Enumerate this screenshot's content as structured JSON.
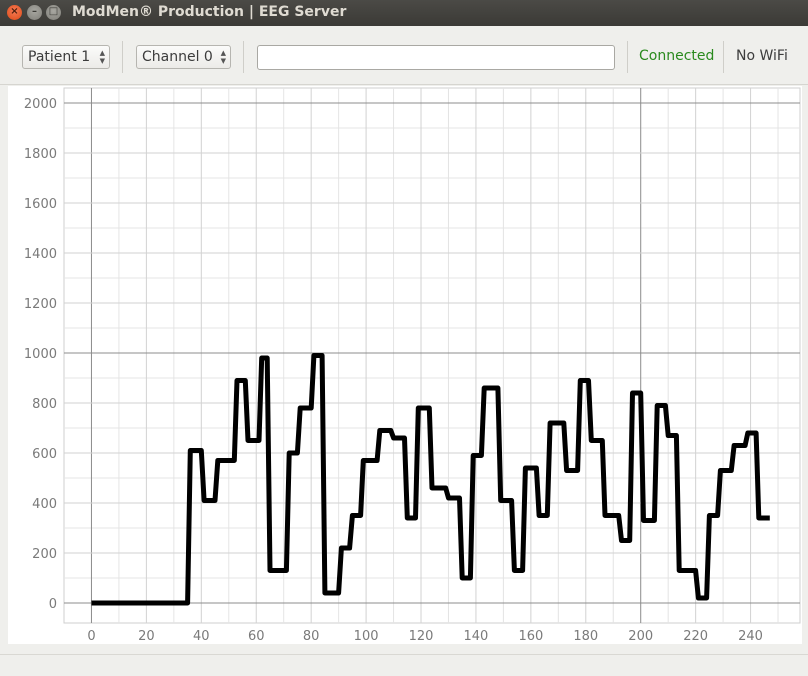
{
  "window": {
    "title": "ModMen® Production | EEG Server"
  },
  "toolbar": {
    "patient_select": {
      "value": "Patient 1"
    },
    "channel_select": {
      "value": "Channel 0"
    },
    "input": {
      "value": ""
    },
    "connection_status": "Connected",
    "connection_color": "#2a8a1e",
    "wifi_status": "No WiFi"
  },
  "chart_data": {
    "type": "line",
    "title": "",
    "xlabel": "",
    "ylabel": "",
    "xlim": [
      -10,
      258
    ],
    "ylim": [
      -80,
      2060
    ],
    "x_ticks": [
      0,
      20,
      40,
      60,
      80,
      100,
      120,
      140,
      160,
      180,
      200,
      220,
      240
    ],
    "y_ticks": [
      0,
      200,
      400,
      600,
      800,
      1000,
      1200,
      1400,
      1600,
      1800,
      2000
    ],
    "grid": true,
    "legend": "none",
    "line_color": "#000000",
    "series": [
      {
        "points": [
          [
            0,
            0
          ],
          [
            35,
            0
          ],
          [
            36,
            610
          ],
          [
            40,
            610
          ],
          [
            41,
            410
          ],
          [
            45,
            410
          ],
          [
            46,
            570
          ],
          [
            52,
            570
          ],
          [
            53,
            890
          ],
          [
            56,
            890
          ],
          [
            57,
            650
          ],
          [
            61,
            650
          ],
          [
            62,
            980
          ],
          [
            64,
            980
          ],
          [
            65,
            130
          ],
          [
            71,
            130
          ],
          [
            72,
            600
          ],
          [
            75,
            600
          ],
          [
            76,
            780
          ],
          [
            80,
            780
          ],
          [
            81,
            990
          ],
          [
            84,
            990
          ],
          [
            85,
            40
          ],
          [
            90,
            40
          ],
          [
            91,
            220
          ],
          [
            94,
            220
          ],
          [
            95,
            350
          ],
          [
            98,
            350
          ],
          [
            99,
            570
          ],
          [
            104,
            570
          ],
          [
            105,
            690
          ],
          [
            109,
            690
          ],
          [
            110,
            660
          ],
          [
            114,
            660
          ],
          [
            115,
            340
          ],
          [
            118,
            340
          ],
          [
            119,
            780
          ],
          [
            123,
            780
          ],
          [
            124,
            460
          ],
          [
            129,
            460
          ],
          [
            130,
            420
          ],
          [
            134,
            420
          ],
          [
            135,
            100
          ],
          [
            138,
            100
          ],
          [
            139,
            590
          ],
          [
            142,
            590
          ],
          [
            143,
            860
          ],
          [
            148,
            860
          ],
          [
            149,
            410
          ],
          [
            153,
            410
          ],
          [
            154,
            130
          ],
          [
            157,
            130
          ],
          [
            158,
            540
          ],
          [
            162,
            540
          ],
          [
            163,
            350
          ],
          [
            166,
            350
          ],
          [
            167,
            720
          ],
          [
            172,
            720
          ],
          [
            173,
            530
          ],
          [
            177,
            530
          ],
          [
            178,
            890
          ],
          [
            181,
            890
          ],
          [
            182,
            650
          ],
          [
            186,
            650
          ],
          [
            187,
            350
          ],
          [
            192,
            350
          ],
          [
            193,
            250
          ],
          [
            196,
            250
          ],
          [
            197,
            840
          ],
          [
            200,
            840
          ],
          [
            201,
            330
          ],
          [
            205,
            330
          ],
          [
            206,
            790
          ],
          [
            209,
            790
          ],
          [
            210,
            670
          ],
          [
            213,
            670
          ],
          [
            214,
            130
          ],
          [
            220,
            130
          ],
          [
            221,
            20
          ],
          [
            224,
            20
          ],
          [
            225,
            350
          ],
          [
            228,
            350
          ],
          [
            229,
            530
          ],
          [
            233,
            530
          ],
          [
            234,
            630
          ],
          [
            238,
            630
          ],
          [
            239,
            680
          ],
          [
            242,
            680
          ],
          [
            243,
            340
          ],
          [
            247,
            340
          ]
        ]
      }
    ]
  }
}
